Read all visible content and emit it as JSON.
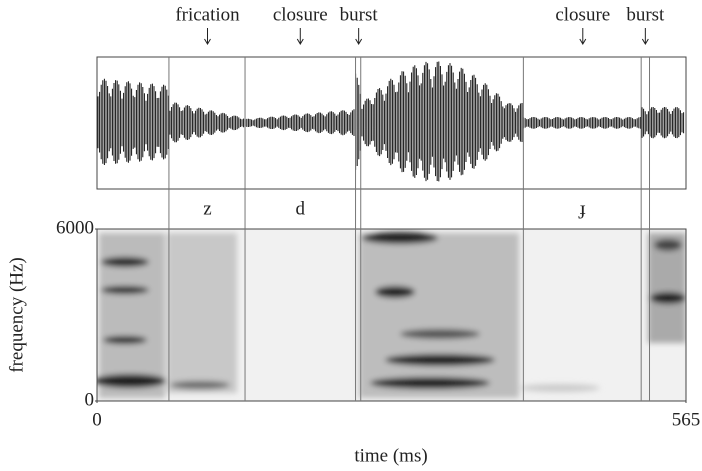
{
  "chart_data": {
    "type": "spectrogram",
    "xlabel": "time (ms)",
    "ylabel": "frequency (Hz)",
    "xlim": [
      0,
      565
    ],
    "xticks": [
      0,
      565
    ],
    "ylim": [
      0,
      6000
    ],
    "yticks": [
      0,
      6000
    ],
    "boundaries": [
      69,
      142,
      248,
      253,
      409,
      522,
      530
    ],
    "annotations": [
      {
        "text": "frication",
        "x": 106
      },
      {
        "text": "closure",
        "x": 195
      },
      {
        "text": "burst",
        "x": 251
      },
      {
        "text": "closure",
        "x": 466
      },
      {
        "text": "burst",
        "x": 526
      }
    ],
    "segments": [
      {
        "label": "z",
        "x": 106
      },
      {
        "label": "d",
        "x": 195
      },
      {
        "label": "ɟ",
        "x": 466
      }
    ]
  }
}
